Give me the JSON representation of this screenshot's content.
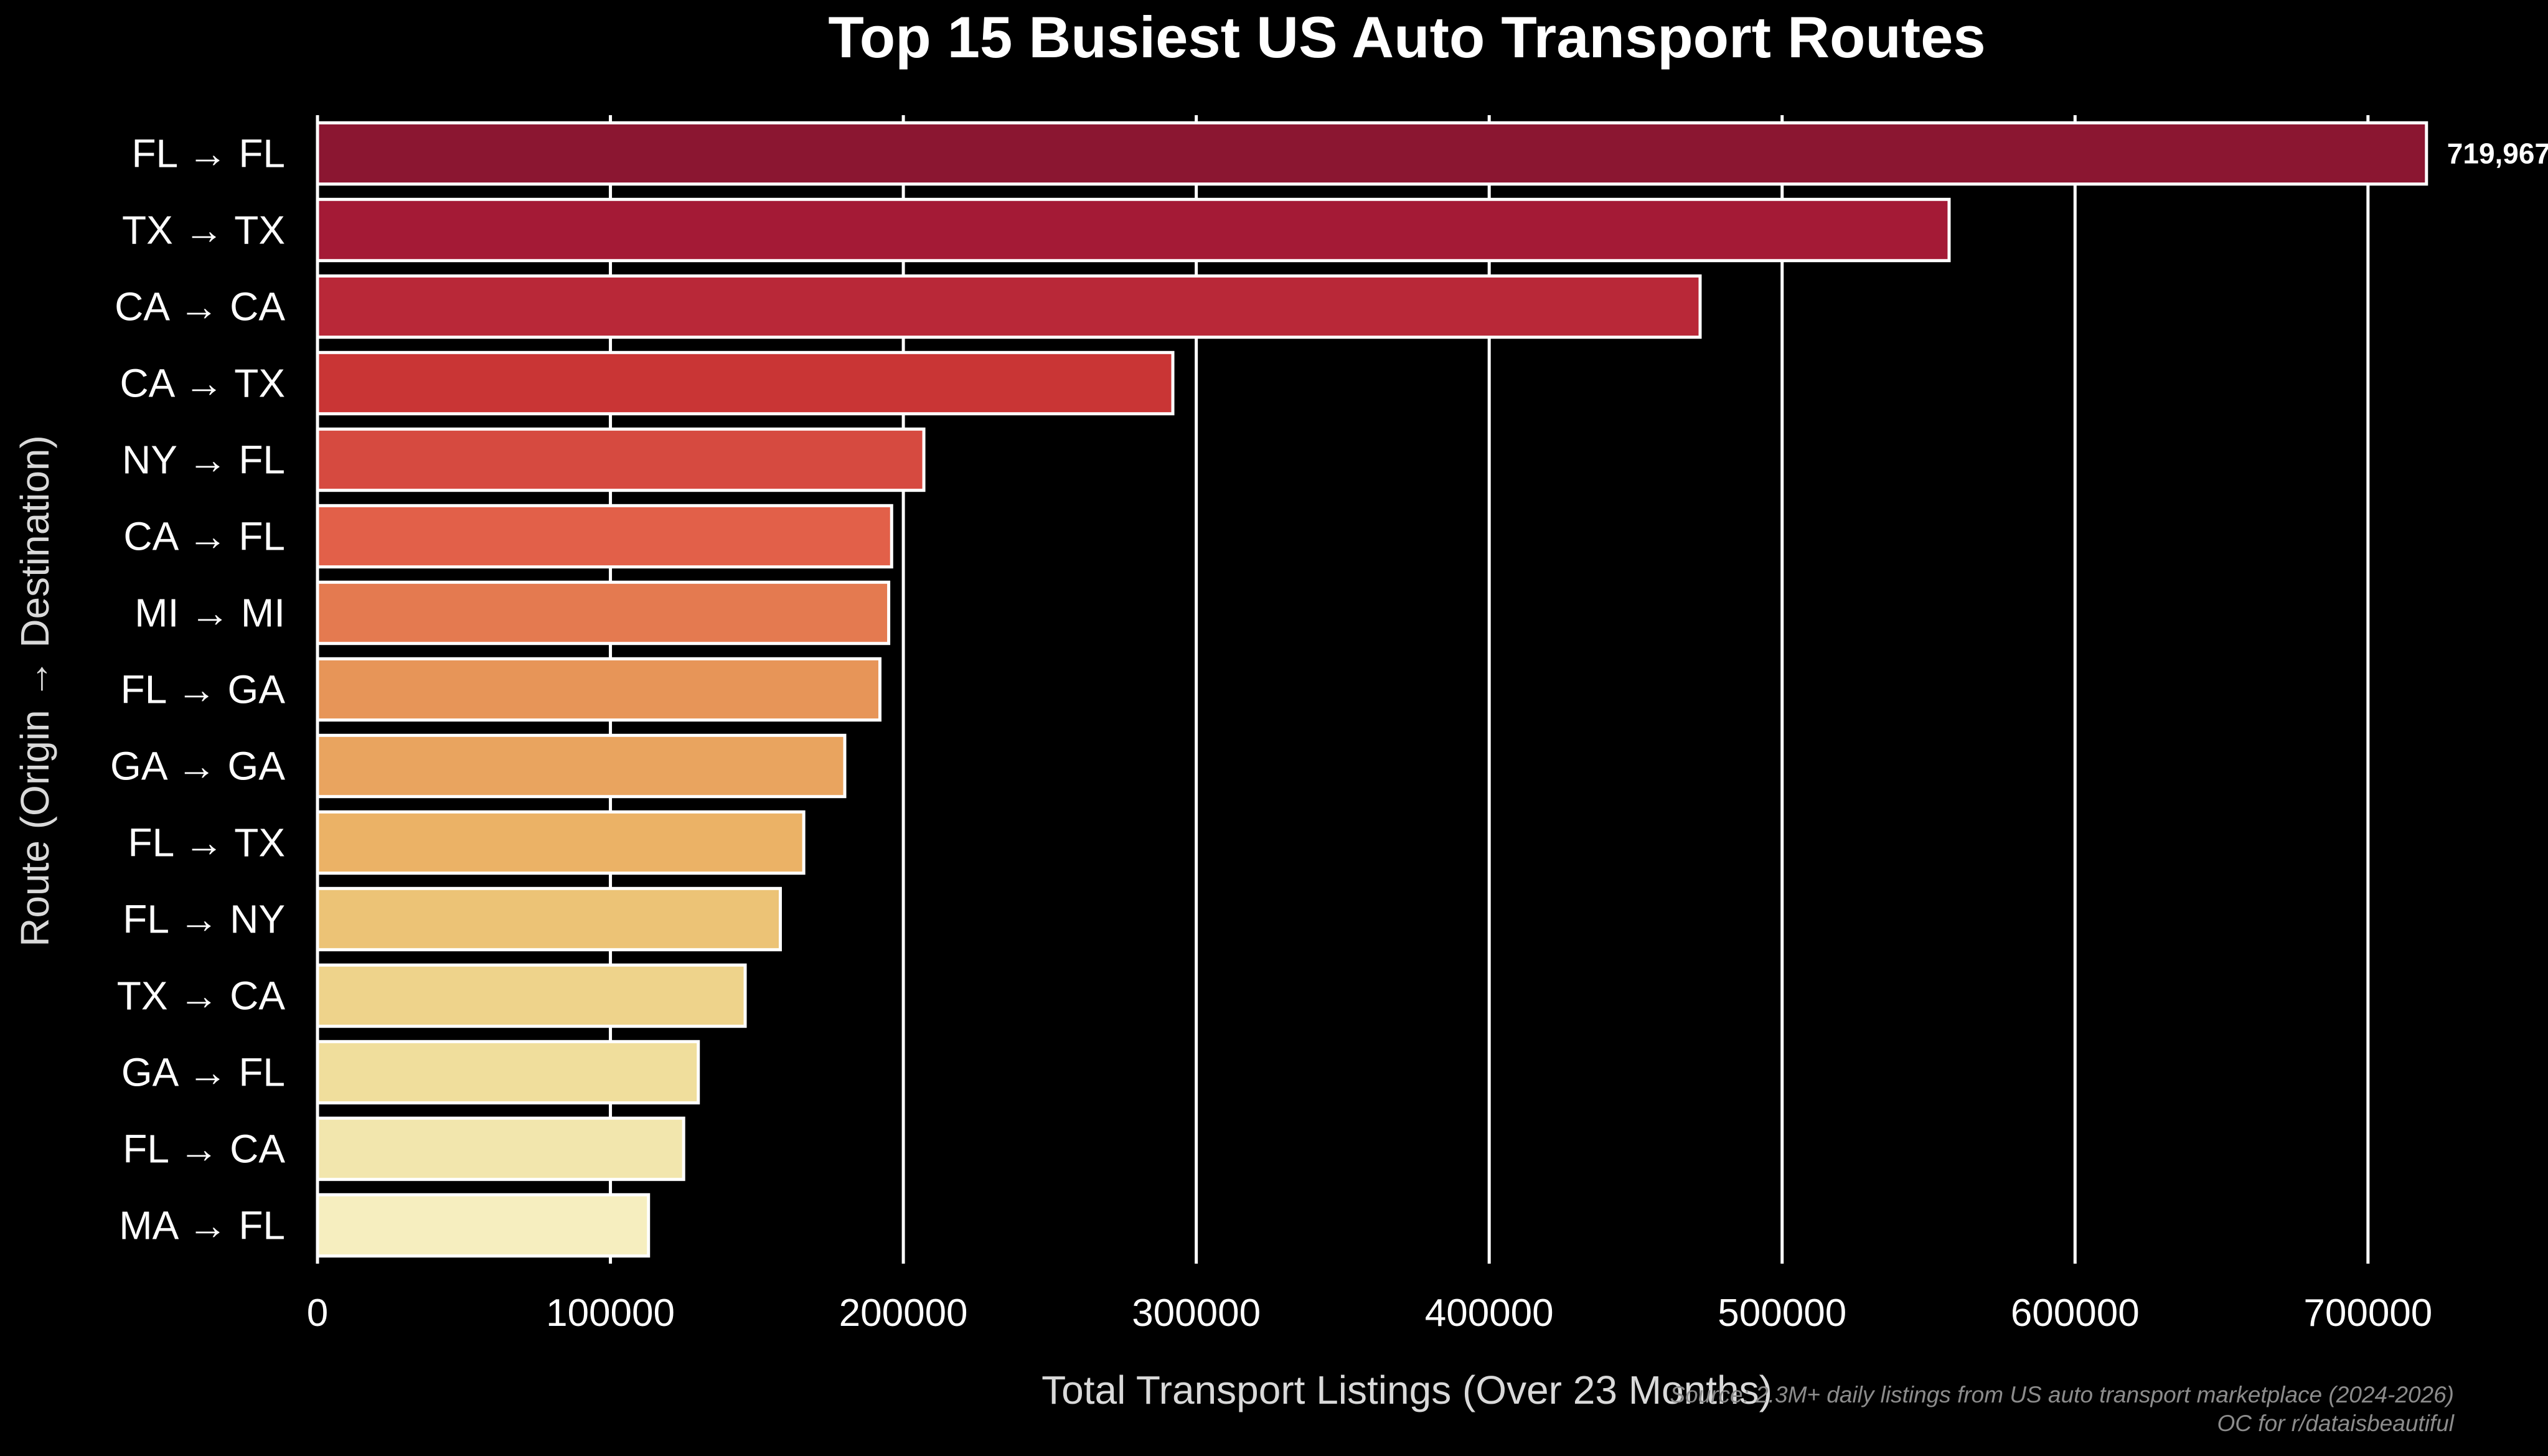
{
  "chart_data": {
    "type": "bar",
    "orientation": "horizontal",
    "title": "Top 15 Busiest US Auto Transport Routes",
    "xlabel": "Total Transport Listings (Over 23 Months)",
    "ylabel": "Route (Origin → Destination)",
    "categories": [
      "FL → FL",
      "TX → TX",
      "CA → CA",
      "CA → TX",
      "NY → FL",
      "CA → FL",
      "MI → MI",
      "FL → GA",
      "GA → GA",
      "FL → TX",
      "FL → NY",
      "TX → CA",
      "GA → FL",
      "FL → CA",
      "MA → FL"
    ],
    "values": [
      719967,
      557000,
      472000,
      292000,
      207000,
      196000,
      195000,
      192000,
      180000,
      166000,
      158000,
      146000,
      130000,
      125000,
      113000
    ],
    "bar_colors": [
      "#8b1631",
      "#a41a36",
      "#b92838",
      "#c93535",
      "#d64a40",
      "#e26049",
      "#e47a50",
      "#e79558",
      "#e9a45f",
      "#ebb266",
      "#ecc376",
      "#eed38b",
      "#f0de9c",
      "#f2e6ad",
      "#f6eebf"
    ],
    "value_labels": [
      {
        "category": "FL → FL",
        "text": "719,967"
      }
    ],
    "xlim": [
      0,
      730000
    ],
    "xticks": [
      0,
      100000,
      200000,
      300000,
      400000,
      500000,
      600000,
      700000
    ],
    "xtick_labels": [
      "0",
      "100000",
      "200000",
      "300000",
      "400000",
      "500000",
      "600000",
      "700000"
    ],
    "grid": "vertical",
    "source_note": "Source: 2.3M+ daily listings from US auto transport marketplace (2024-2026)",
    "credit": "OC for r/dataisbeautiful",
    "colors": {
      "background": "#000000",
      "text": "#ffffff",
      "grid": "#ffffff",
      "bar_edge": "#ffffff",
      "note": "#8c8c8c"
    }
  }
}
